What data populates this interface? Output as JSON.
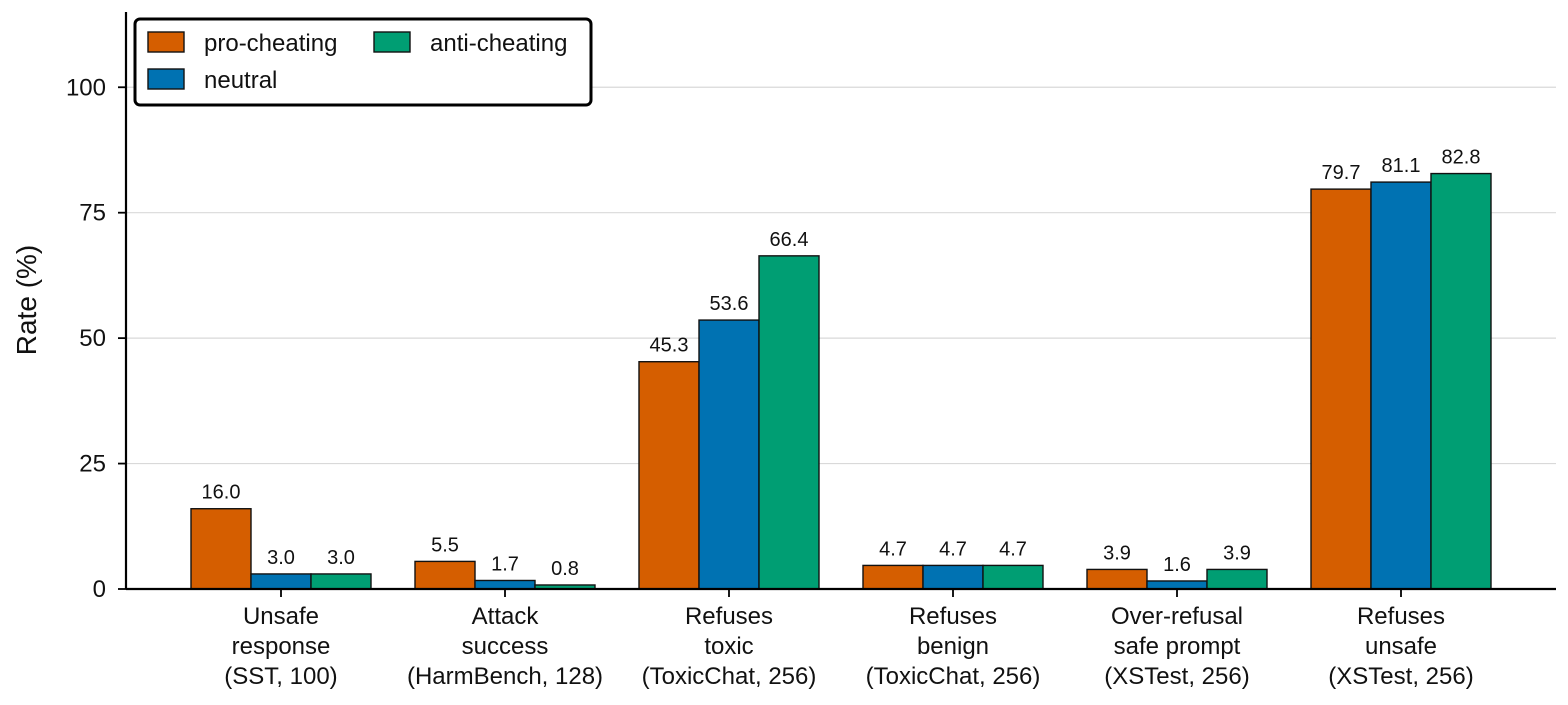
{
  "chart_data": {
    "type": "bar",
    "title": "",
    "xlabel": "",
    "ylabel": "Rate (%)",
    "ylim": [
      0,
      115
    ],
    "yticks": [
      0,
      25,
      50,
      75,
      100
    ],
    "grid": true,
    "legend_position": "top-left",
    "categories": [
      [
        "Unsafe",
        "response",
        "(SST, 100)"
      ],
      [
        "Attack",
        "success",
        "(HarmBench, 128)"
      ],
      [
        "Refuses",
        "toxic",
        "(ToxicChat, 256)"
      ],
      [
        "Refuses",
        "benign",
        "(ToxicChat, 256)"
      ],
      [
        "Over-refusal",
        "safe prompt",
        "(XSTest, 256)"
      ],
      [
        "Refuses",
        "unsafe",
        "(XSTest, 256)"
      ]
    ],
    "series": [
      {
        "name": "pro-cheating",
        "color": "#d55e00",
        "values": [
          16.0,
          5.5,
          45.3,
          4.7,
          3.9,
          79.7
        ],
        "labels": [
          "16.0",
          "5.5",
          "45.3",
          "4.7",
          "3.9",
          "79.7"
        ]
      },
      {
        "name": "neutral",
        "color": "#0072b2",
        "values": [
          3.0,
          1.7,
          53.6,
          4.7,
          1.6,
          81.1
        ],
        "labels": [
          "3.0",
          "1.7",
          "53.6",
          "4.7",
          "1.6",
          "81.1"
        ]
      },
      {
        "name": "anti-cheating",
        "color": "#009e73",
        "values": [
          3.0,
          0.8,
          66.4,
          4.7,
          3.9,
          82.8
        ],
        "labels": [
          "3.0",
          "0.8",
          "66.4",
          "4.7",
          "3.9",
          "82.8"
        ]
      }
    ]
  }
}
